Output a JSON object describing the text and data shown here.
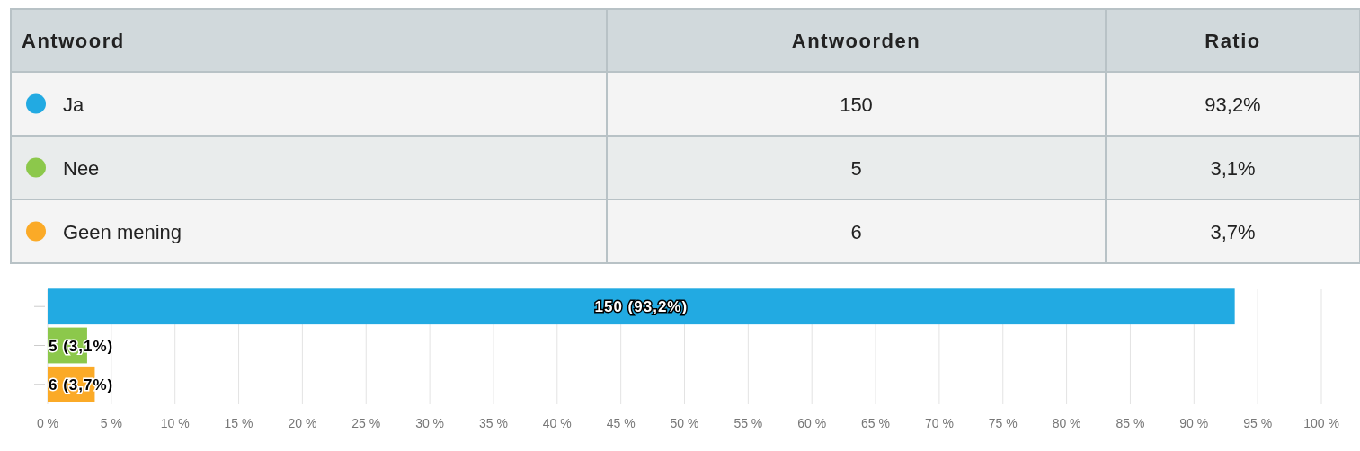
{
  "chart_data": [
    {
      "type": "other",
      "categories": [
        "Antwoord",
        "Antwoorden",
        "Ratio"
      ],
      "y_categories": [
        "Ja",
        "Nee",
        "Geen mening"
      ],
      "cell_labels": [
        [
          "150",
          "93,2%"
        ],
        [
          "5",
          "3,1%"
        ],
        [
          "6",
          "3,7%"
        ]
      ]
    },
    {
      "type": "bar",
      "orientation": "horizontal",
      "categories": [
        null,
        null,
        null
      ],
      "values": [
        93.2,
        3.1,
        3.7
      ],
      "colors": [
        "#22aae2",
        "#8cc84b",
        "#fbaa27"
      ],
      "value_labels": [
        "150 (93,2%)",
        "5 (3,1%)",
        "6 (3,7%)"
      ],
      "xlim": [
        0,
        100
      ],
      "xticks": [
        {
          "value": 0,
          "label": "0 %"
        },
        {
          "value": 5,
          "label": "5 %"
        },
        {
          "value": 10,
          "label": "10 %"
        },
        {
          "value": 15,
          "label": "15 %"
        },
        {
          "value": 20,
          "label": "20 %"
        },
        {
          "value": 25,
          "label": "25 %"
        },
        {
          "value": 30,
          "label": "30 %"
        },
        {
          "value": 35,
          "label": "35 %"
        },
        {
          "value": 40,
          "label": "40 %"
        },
        {
          "value": 45,
          "label": "45 %"
        },
        {
          "value": 50,
          "label": "50 %"
        },
        {
          "value": 55,
          "label": "55 %"
        },
        {
          "value": 60,
          "label": "60 %"
        },
        {
          "value": 65,
          "label": "65 %"
        },
        {
          "value": 70,
          "label": "70 %"
        },
        {
          "value": 75,
          "label": "75 %"
        },
        {
          "value": 80,
          "label": "80 %"
        },
        {
          "value": 85,
          "label": "85 %"
        },
        {
          "value": 90,
          "label": "90 %"
        },
        {
          "value": 95,
          "label": "95 %"
        },
        {
          "value": 100,
          "label": "100 %"
        }
      ],
      "grid": "x",
      "tick_labels": "x"
    }
  ]
}
